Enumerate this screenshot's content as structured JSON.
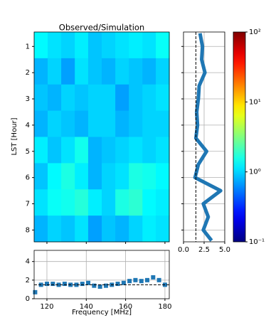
{
  "chart_data": [
    {
      "type": "heatmap",
      "title": "Observed/Simulation",
      "ylabel": "LST [Hour]",
      "x": [
        116.9,
        123.8,
        130.7,
        137.6,
        144.4,
        151.3,
        158.2,
        165.1,
        172.0,
        178.8
      ],
      "y": [
        0.95,
        1.95,
        2.95,
        3.95,
        4.95,
        5.95,
        6.95,
        7.95
      ],
      "values": [
        [
          1.3,
          1.1,
          1.0,
          1.2,
          0.9,
          1.0,
          1.1,
          1.2,
          1.1,
          1.4
        ],
        [
          0.8,
          1.0,
          0.7,
          1.1,
          0.9,
          0.8,
          1.0,
          0.9,
          0.8,
          1.0
        ],
        [
          0.9,
          0.8,
          1.0,
          0.9,
          1.0,
          1.0,
          0.7,
          0.9,
          1.0,
          1.1
        ],
        [
          0.8,
          1.0,
          0.9,
          0.8,
          1.0,
          1.0,
          0.8,
          0.9,
          1.0,
          1.0
        ],
        [
          1.2,
          0.9,
          1.1,
          1.5,
          0.8,
          0.9,
          1.0,
          1.1,
          1.0,
          1.1
        ],
        [
          0.9,
          1.3,
          1.6,
          1.2,
          0.8,
          1.0,
          1.1,
          1.6,
          1.5,
          1.3
        ],
        [
          1.1,
          1.4,
          1.5,
          1.7,
          1.2,
          1.0,
          1.6,
          1.8,
          1.3,
          1.2
        ],
        [
          0.8,
          1.0,
          0.9,
          1.1,
          0.7,
          0.9,
          0.8,
          1.0,
          1.2,
          1.1
        ]
      ],
      "xlim": [
        113.5,
        182.2
      ],
      "ylim": [
        0.45,
        8.45
      ],
      "yticks": [
        1,
        2,
        3,
        4,
        5,
        6,
        7,
        8
      ],
      "y_inverted": true,
      "colormap": "jet",
      "log_color": true,
      "clim": [
        0.1,
        100
      ],
      "cticks": [
        {
          "value": 0.1,
          "label": "10⁻¹"
        },
        {
          "value": 1,
          "label": "10⁰"
        },
        {
          "value": 10,
          "label": "10¹"
        },
        {
          "value": 100,
          "label": "10²"
        }
      ]
    },
    {
      "type": "line",
      "color": "#1f77b4",
      "y": [
        0.5,
        1.0,
        1.5,
        2.0,
        2.5,
        3.0,
        3.5,
        4.0,
        4.5,
        5.0,
        5.5,
        6.0,
        6.5,
        7.0,
        7.5,
        8.0,
        8.4
      ],
      "values": [
        2.0,
        2.3,
        2.2,
        2.6,
        1.9,
        1.8,
        1.6,
        1.7,
        1.5,
        2.8,
        1.8,
        1.4,
        4.5,
        2.4,
        3.0,
        2.4,
        3.4
      ],
      "xlim": [
        0,
        5
      ],
      "xticks": [
        {
          "value": 0,
          "label": "0.0"
        },
        {
          "value": 2.5,
          "label": "2.5"
        },
        {
          "value": 5,
          "label": "5.0"
        }
      ],
      "reference": 1.5,
      "grid": true
    },
    {
      "type": "scatter",
      "color": "#1f77b4",
      "xlabel": "Frequency [MHz]",
      "x": [
        114,
        117,
        120,
        123,
        126,
        129,
        132,
        135,
        138,
        141,
        144,
        147,
        150,
        153,
        156,
        159,
        162,
        165,
        168,
        171,
        174,
        177,
        180
      ],
      "values": [
        0.7,
        1.5,
        1.6,
        1.6,
        1.5,
        1.6,
        1.5,
        1.5,
        1.6,
        1.7,
        1.4,
        1.3,
        1.4,
        1.5,
        1.6,
        1.7,
        1.9,
        2.0,
        1.9,
        2.0,
        2.3,
        2.0,
        1.5
      ],
      "xlim": [
        113.5,
        182.2
      ],
      "xticks": [
        120,
        140,
        160,
        180
      ],
      "ylim": [
        0,
        5.2
      ],
      "yticks": [
        0,
        2,
        4
      ],
      "reference": 1.5,
      "grid": true
    }
  ]
}
